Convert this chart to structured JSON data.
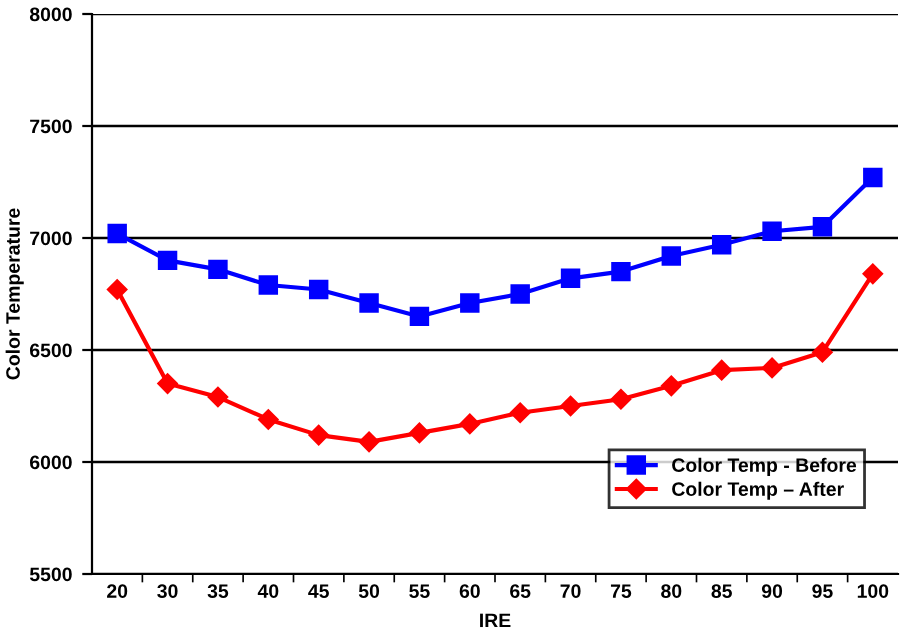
{
  "chart_data": {
    "type": "line",
    "xlabel": "IRE",
    "ylabel": "Color Temperature",
    "categories": [
      "20",
      "30",
      "35",
      "40",
      "45",
      "50",
      "55",
      "60",
      "65",
      "70",
      "75",
      "80",
      "85",
      "90",
      "95",
      "100"
    ],
    "series": [
      {
        "name": "Color Temp - Before",
        "color": "#0000ff",
        "marker": "square",
        "values": [
          7020,
          6900,
          6860,
          6790,
          6770,
          6710,
          6650,
          6710,
          6750,
          6820,
          6850,
          6920,
          6970,
          7030,
          7050,
          7270
        ]
      },
      {
        "name": "Color Temp – After",
        "color": "#ff0000",
        "marker": "diamond",
        "values": [
          6770,
          6350,
          6290,
          6190,
          6120,
          6090,
          6130,
          6170,
          6220,
          6250,
          6280,
          6340,
          6410,
          6420,
          6490,
          6840
        ]
      }
    ],
    "ylim": [
      5500,
      8000
    ],
    "yticks": [
      5500,
      6000,
      6500,
      7000,
      7500,
      8000
    ],
    "grid": "y",
    "legend": "bottom right",
    "line_style": "solid"
  }
}
